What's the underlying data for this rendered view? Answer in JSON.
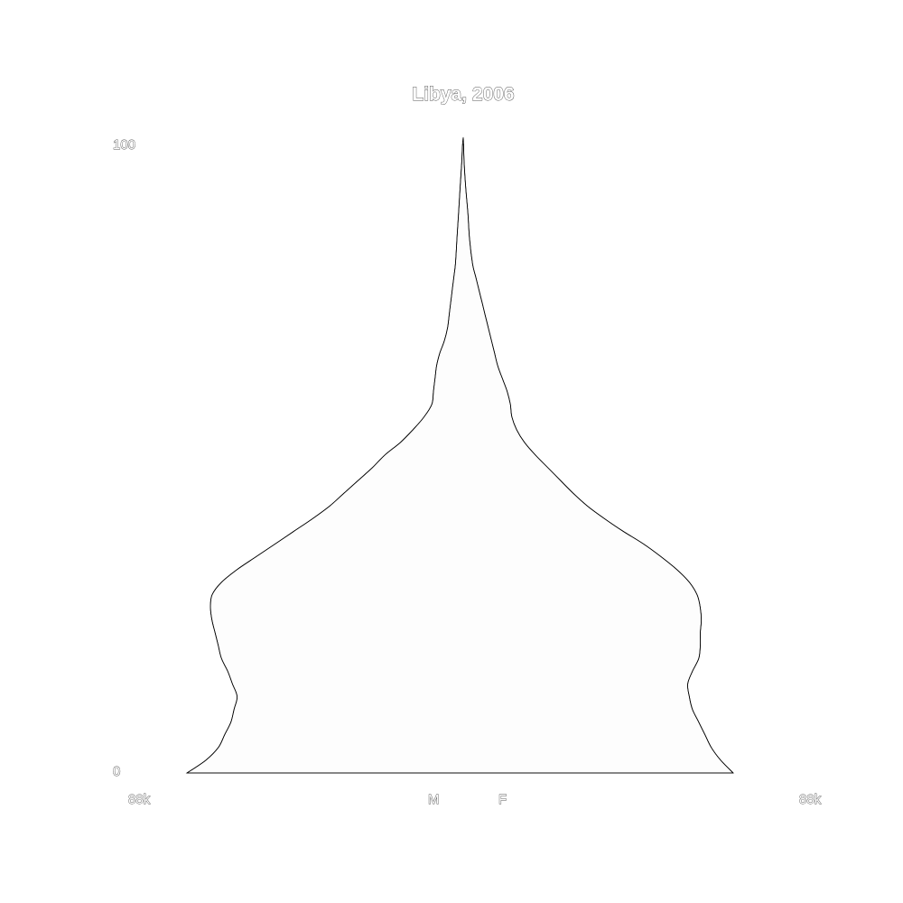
{
  "chart_data": {
    "type": "area",
    "title": "Libya, 2006",
    "y_tick_labels": {
      "top": "100",
      "bottom": "0"
    },
    "x_tick_labels": {
      "left_max": "88k",
      "right_max": "88k",
      "male": "M",
      "female": "F"
    },
    "ylim": [
      0,
      100
    ],
    "xlim": [
      -88000,
      88000
    ],
    "colors": {
      "fill": "#fdfdfd",
      "outline": "#000000"
    },
    "ages": [
      0,
      2,
      4,
      6,
      8,
      10,
      12,
      14,
      16,
      18,
      20,
      22,
      24,
      26,
      28,
      30,
      32,
      34,
      36,
      38,
      40,
      42,
      44,
      46,
      48,
      50,
      52,
      54,
      56,
      58,
      60,
      62,
      64,
      66,
      68,
      70,
      72,
      74,
      76,
      78,
      80,
      84,
      88,
      92,
      96,
      99
    ],
    "series": [
      {
        "name": "M",
        "values": [
          88000,
          82000,
          78000,
          76000,
          74000,
          73000,
          72000,
          73500,
          75000,
          77000,
          78000,
          79000,
          80000,
          80500,
          80000,
          77000,
          72000,
          66000,
          60000,
          54000,
          48000,
          42500,
          38000,
          33500,
          29000,
          25000,
          20000,
          16000,
          12500,
          10000,
          9500,
          9000,
          8500,
          7500,
          6000,
          5000,
          4500,
          4000,
          3500,
          3000,
          2500,
          2000,
          1500,
          1000,
          500,
          200
        ]
      },
      {
        "name": "F",
        "values": [
          86000,
          82000,
          79000,
          77000,
          75000,
          73000,
          72000,
          71500,
          73000,
          75000,
          75500,
          75500,
          75800,
          75500,
          74500,
          72000,
          68000,
          63000,
          57500,
          51000,
          45000,
          39500,
          35000,
          31000,
          27000,
          23000,
          19500,
          17000,
          15500,
          15000,
          14000,
          12500,
          11000,
          10000,
          9000,
          8000,
          7000,
          6000,
          5000,
          4000,
          3000,
          2000,
          1500,
          800,
          300,
          100
        ]
      }
    ]
  }
}
